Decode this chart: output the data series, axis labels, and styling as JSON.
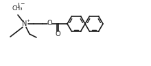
{
  "bg_color": "#ffffff",
  "line_color": "#1a1a1a",
  "lw": 1.2,
  "font_size": 6.5,
  "figsize": [
    2.2,
    0.97
  ],
  "dpi": 100,
  "xlim": [
    0,
    220
  ],
  "ylim": [
    0,
    97
  ]
}
